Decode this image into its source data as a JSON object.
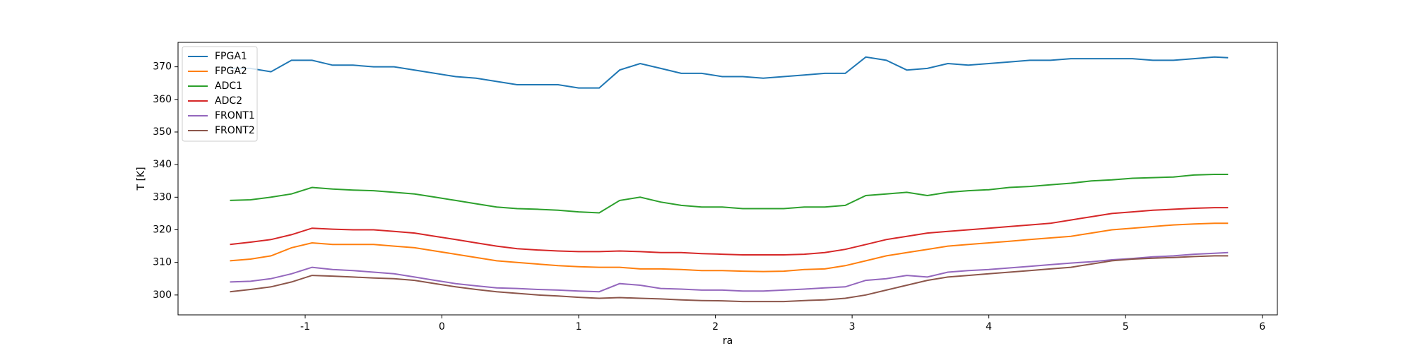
{
  "chart_data": {
    "type": "line",
    "xlabel": "ra",
    "ylabel": "T [K]",
    "x": [
      -1.55,
      -1.4,
      -1.25,
      -1.1,
      -0.95,
      -0.8,
      -0.65,
      -0.5,
      -0.35,
      -0.2,
      -0.05,
      0.1,
      0.25,
      0.4,
      0.55,
      0.7,
      0.85,
      1.0,
      1.15,
      1.3,
      1.45,
      1.6,
      1.75,
      1.9,
      2.05,
      2.2,
      2.35,
      2.5,
      2.65,
      2.8,
      2.95,
      3.1,
      3.25,
      3.4,
      3.55,
      3.7,
      3.85,
      4.0,
      4.15,
      4.3,
      4.45,
      4.6,
      4.75,
      4.9,
      5.05,
      5.2,
      5.35,
      5.5,
      5.65,
      5.75
    ],
    "series": [
      {
        "name": "FPGA1",
        "color": "#1f77b4",
        "values": [
          369.5,
          369.5,
          368.5,
          372,
          372,
          370.5,
          370.5,
          370,
          370,
          369,
          368,
          367,
          366.5,
          365.5,
          364.5,
          364.5,
          364.5,
          363.5,
          363.5,
          369,
          371,
          369.5,
          368,
          368,
          367,
          367,
          366.5,
          367,
          367.5,
          368,
          368,
          373,
          372,
          369,
          369.5,
          371,
          370.5,
          371,
          371.5,
          372,
          372,
          372.5,
          372.5,
          372.5,
          372.5,
          372,
          372,
          372.5,
          373,
          372.8
        ]
      },
      {
        "name": "FPGA2",
        "color": "#ff7f0e",
        "values": [
          310.5,
          311,
          312,
          314.5,
          316,
          315.5,
          315.5,
          315.5,
          315,
          314.5,
          313.5,
          312.5,
          311.5,
          310.5,
          310,
          309.5,
          309,
          308.7,
          308.5,
          308.5,
          308,
          308,
          307.8,
          307.5,
          307.5,
          307.3,
          307.2,
          307.3,
          307.8,
          308,
          309,
          310.5,
          312,
          313,
          314,
          315,
          315.5,
          316,
          316.5,
          317,
          317.5,
          318,
          319,
          320,
          320.5,
          321,
          321.5,
          321.8,
          322,
          322
        ]
      },
      {
        "name": "ADC1",
        "color": "#2ca02c",
        "values": [
          329,
          329.2,
          330,
          331,
          333,
          332.5,
          332.2,
          332,
          331.5,
          331,
          330,
          329,
          328,
          327,
          326.5,
          326.3,
          326,
          325.5,
          325.2,
          329,
          330,
          328.5,
          327.5,
          327,
          327,
          326.5,
          326.5,
          326.5,
          327,
          327,
          327.5,
          330.5,
          331,
          331.5,
          330.5,
          331.5,
          332,
          332.3,
          333,
          333.3,
          333.8,
          334.3,
          335,
          335.3,
          335.8,
          336,
          336.2,
          336.8,
          337,
          337
        ]
      },
      {
        "name": "ADC2",
        "color": "#d62728",
        "values": [
          315.5,
          316.2,
          317,
          318.5,
          320.5,
          320.2,
          320,
          320,
          319.5,
          319,
          318,
          317,
          316,
          315,
          314.2,
          313.8,
          313.5,
          313.3,
          313.3,
          313.5,
          313.3,
          313,
          313,
          312.7,
          312.5,
          312.3,
          312.3,
          312.3,
          312.5,
          313,
          314,
          315.5,
          317,
          318,
          319,
          319.5,
          320,
          320.5,
          321,
          321.5,
          322,
          323,
          324,
          325,
          325.5,
          326,
          326.3,
          326.6,
          326.8,
          326.8
        ]
      },
      {
        "name": "FRONT1",
        "color": "#9467bd",
        "values": [
          304,
          304.2,
          305,
          306.5,
          308.5,
          307.8,
          307.5,
          307,
          306.5,
          305.5,
          304.5,
          303.5,
          302.8,
          302.2,
          302,
          301.7,
          301.5,
          301.2,
          301,
          303.5,
          303,
          302,
          301.8,
          301.5,
          301.5,
          301.2,
          301.2,
          301.5,
          301.8,
          302.2,
          302.5,
          304.5,
          305,
          306,
          305.5,
          307,
          307.5,
          307.8,
          308.3,
          308.8,
          309.3,
          309.8,
          310.2,
          310.8,
          311.2,
          311.7,
          312,
          312.5,
          312.8,
          313
        ]
      },
      {
        "name": "FRONT2",
        "color": "#8c564b",
        "values": [
          301,
          301.7,
          302.5,
          304,
          306,
          305.8,
          305.5,
          305.2,
          305,
          304.5,
          303.5,
          302.5,
          301.7,
          301,
          300.5,
          300,
          299.7,
          299.3,
          299,
          299.2,
          299,
          298.8,
          298.5,
          298.3,
          298.2,
          298,
          298,
          298,
          298.3,
          298.5,
          299,
          300,
          301.5,
          303,
          304.5,
          305.5,
          306,
          306.5,
          307,
          307.5,
          308,
          308.5,
          309.5,
          310.5,
          311,
          311.3,
          311.5,
          311.8,
          312,
          312
        ]
      }
    ],
    "xlim": [
      -1.93,
      6.11
    ],
    "xticks": [
      -1,
      0,
      1,
      2,
      3,
      4,
      5,
      6
    ],
    "ylim": [
      293.9,
      377.5
    ],
    "yticks": [
      300,
      310,
      320,
      330,
      340,
      350,
      360,
      370
    ],
    "grid": false,
    "legend": "upper left"
  }
}
